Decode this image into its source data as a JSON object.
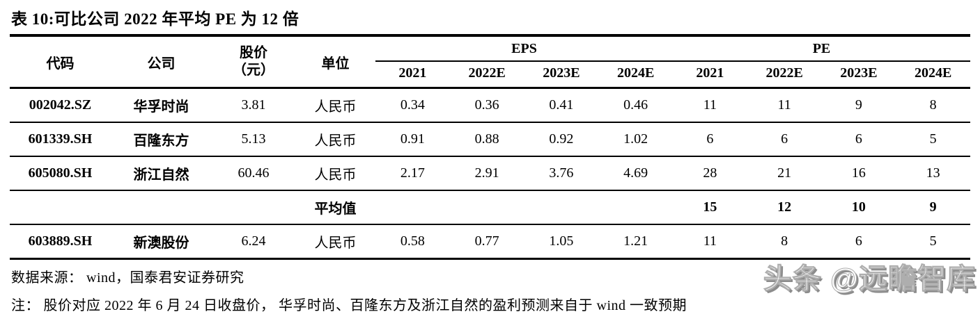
{
  "title": "表 10:可比公司 2022 年平均 PE 为 12 倍",
  "table": {
    "col_headers": {
      "code": "代码",
      "company": "公司",
      "price_line1": "股价",
      "price_line2": "（元）",
      "unit": "单位",
      "eps_group": "EPS",
      "pe_group": "PE",
      "years": [
        "2021",
        "2022E",
        "2023E",
        "2024E",
        "2021",
        "2022E",
        "2023E",
        "2024E"
      ]
    },
    "rows": [
      {
        "code": "002042.SZ",
        "company": "华孚时尚",
        "price": "3.81",
        "unit": "人民币",
        "eps": [
          "0.34",
          "0.36",
          "0.41",
          "0.46"
        ],
        "pe": [
          "11",
          "11",
          "9",
          "8"
        ]
      },
      {
        "code": "601339.SH",
        "company": "百隆东方",
        "price": "5.13",
        "unit": "人民币",
        "eps": [
          "0.91",
          "0.88",
          "0.92",
          "1.02"
        ],
        "pe": [
          "6",
          "6",
          "6",
          "5"
        ]
      },
      {
        "code": "605080.SH",
        "company": "浙江自然",
        "price": "60.46",
        "unit": "人民币",
        "eps": [
          "2.17",
          "2.91",
          "3.76",
          "4.69"
        ],
        "pe": [
          "28",
          "21",
          "16",
          "13"
        ]
      },
      {
        "code": "",
        "company": "",
        "price": "",
        "unit": "平均值",
        "eps": [
          "",
          "",
          "",
          ""
        ],
        "pe": [
          "15",
          "12",
          "10",
          "9"
        ]
      },
      {
        "code": "603889.SH",
        "company": "新澳股份",
        "price": "6.24",
        "unit": "人民币",
        "eps": [
          "0.58",
          "0.77",
          "1.05",
          "1.21"
        ],
        "pe": [
          "11",
          "8",
          "6",
          "5"
        ]
      }
    ]
  },
  "source": "数据来源： wind，国泰君安证券研究",
  "note": "注： 股价对应 2022 年 6 月 24 日收盘价， 华孚时尚、百隆东方及浙江自然的盈利预测来自于 wind 一致预期",
  "watermark": "头条 @远瞻智库",
  "colors": {
    "text": "#000000",
    "background": "#ffffff",
    "rule": "#000000",
    "watermark_shadow": "#8c8c8c"
  }
}
